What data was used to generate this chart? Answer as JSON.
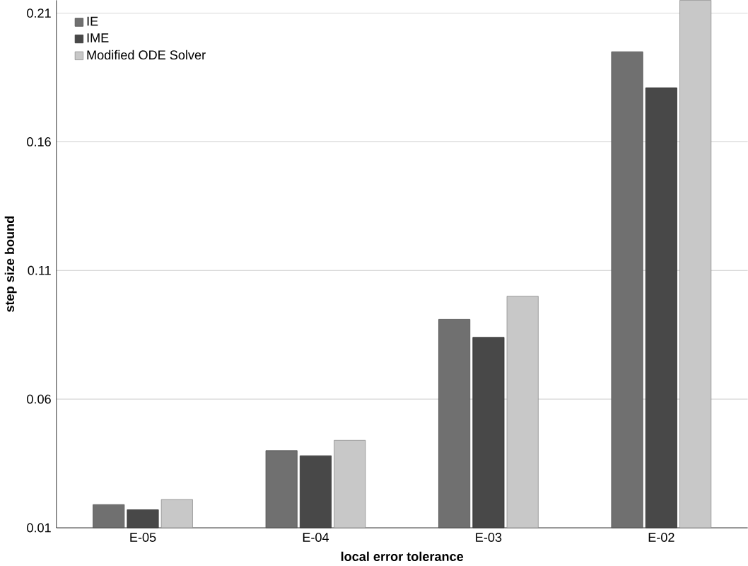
{
  "chart_data": {
    "type": "bar",
    "xlabel": "local error tolerance",
    "ylabel": "step size bound",
    "categories": [
      "E-05",
      "E-04",
      "E-03",
      "E-02"
    ],
    "series": [
      {
        "name": "IE",
        "color": "#707070",
        "values": [
          0.019,
          0.04,
          0.091,
          0.195
        ]
      },
      {
        "name": "IME",
        "color": "#484848",
        "values": [
          0.017,
          0.038,
          0.084,
          0.181
        ]
      },
      {
        "name": "Modified ODE Solver",
        "color": "#c8c8c8",
        "values": [
          0.021,
          0.044,
          0.1,
          0.215
        ]
      }
    ],
    "ylim": [
      0.01,
      0.215
    ],
    "yticks": [
      0.01,
      0.06,
      0.11,
      0.16,
      0.21
    ],
    "grid": "y",
    "legend": "top left"
  }
}
